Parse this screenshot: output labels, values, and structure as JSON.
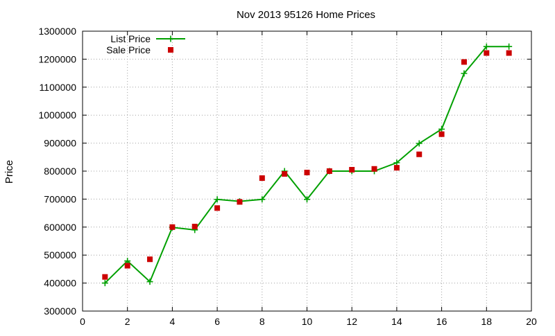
{
  "chart_data": {
    "type": "line",
    "title": "Nov 2013 95126 Home Prices",
    "xlabel": "",
    "ylabel": "Price",
    "xlim": [
      0,
      20
    ],
    "ylim": [
      300000,
      1300000
    ],
    "x_ticks": [
      0,
      2,
      4,
      6,
      8,
      10,
      12,
      14,
      16,
      18,
      20
    ],
    "y_ticks": [
      300000,
      400000,
      500000,
      600000,
      700000,
      800000,
      900000,
      1000000,
      1100000,
      1200000,
      1300000
    ],
    "grid": true,
    "legend_position": "top-left",
    "series": [
      {
        "name": "List Price",
        "style": "line+cross",
        "color": "#00a000",
        "x": [
          1,
          2,
          3,
          4,
          5,
          6,
          7,
          8,
          9,
          10,
          11,
          12,
          13,
          14,
          15,
          16,
          17,
          18,
          19
        ],
        "y": [
          400000,
          479000,
          405000,
          599000,
          590000,
          699000,
          692000,
          699000,
          800000,
          699000,
          800000,
          800000,
          800000,
          830000,
          899000,
          950000,
          1149000,
          1245000,
          1245000
        ]
      },
      {
        "name": "Sale Price",
        "style": "square",
        "color": "#cc0000",
        "x": [
          1,
          2,
          3,
          4,
          5,
          6,
          7,
          8,
          9,
          10,
          11,
          12,
          13,
          14,
          15,
          16,
          17,
          18,
          19
        ],
        "y": [
          422000,
          462000,
          485000,
          600000,
          602000,
          668000,
          690000,
          775000,
          790000,
          795000,
          800000,
          805000,
          808000,
          812000,
          860000,
          932000,
          1190000,
          1222000,
          1222000
        ]
      }
    ]
  }
}
